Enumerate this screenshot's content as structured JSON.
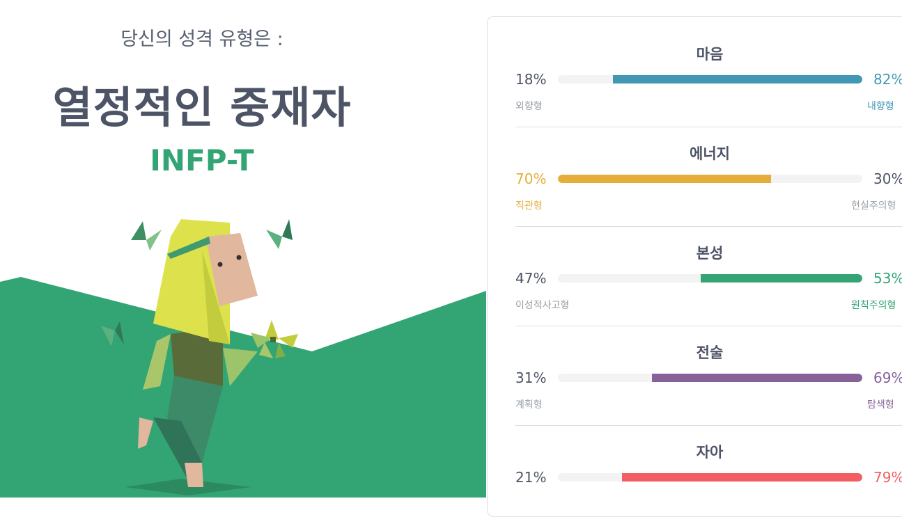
{
  "header": {
    "subtitle": "당신의 성격 유형은 :",
    "type_name": "열정적인 중재자",
    "type_code": "INFP-T"
  },
  "colors": {
    "green": "#33a474",
    "teal": "#4298b4",
    "yellow": "#e4ae3a",
    "purple": "#88619a",
    "red": "#f25e62"
  },
  "traits": [
    {
      "title": "마음",
      "left_pct": "18%",
      "right_pct": "82%",
      "left_label": "외향형",
      "right_label": "내향형",
      "dominant": "right",
      "value": 82,
      "color": "#4298b4"
    },
    {
      "title": "에너지",
      "left_pct": "70%",
      "right_pct": "30%",
      "left_label": "직관형",
      "right_label": "현실주의형",
      "dominant": "left",
      "value": 70,
      "color": "#e4ae3a"
    },
    {
      "title": "본성",
      "left_pct": "47%",
      "right_pct": "53%",
      "left_label": "이성적사고형",
      "right_label": "원칙주의형",
      "dominant": "right",
      "value": 53,
      "color": "#33a474"
    },
    {
      "title": "전술",
      "left_pct": "31%",
      "right_pct": "69%",
      "left_label": "계획형",
      "right_label": "탐색형",
      "dominant": "right",
      "value": 69,
      "color": "#88619a"
    },
    {
      "title": "자아",
      "left_pct": "21%",
      "right_pct": "79%",
      "left_label": "",
      "right_label": "",
      "dominant": "right",
      "value": 79,
      "color": "#f25e62"
    }
  ]
}
